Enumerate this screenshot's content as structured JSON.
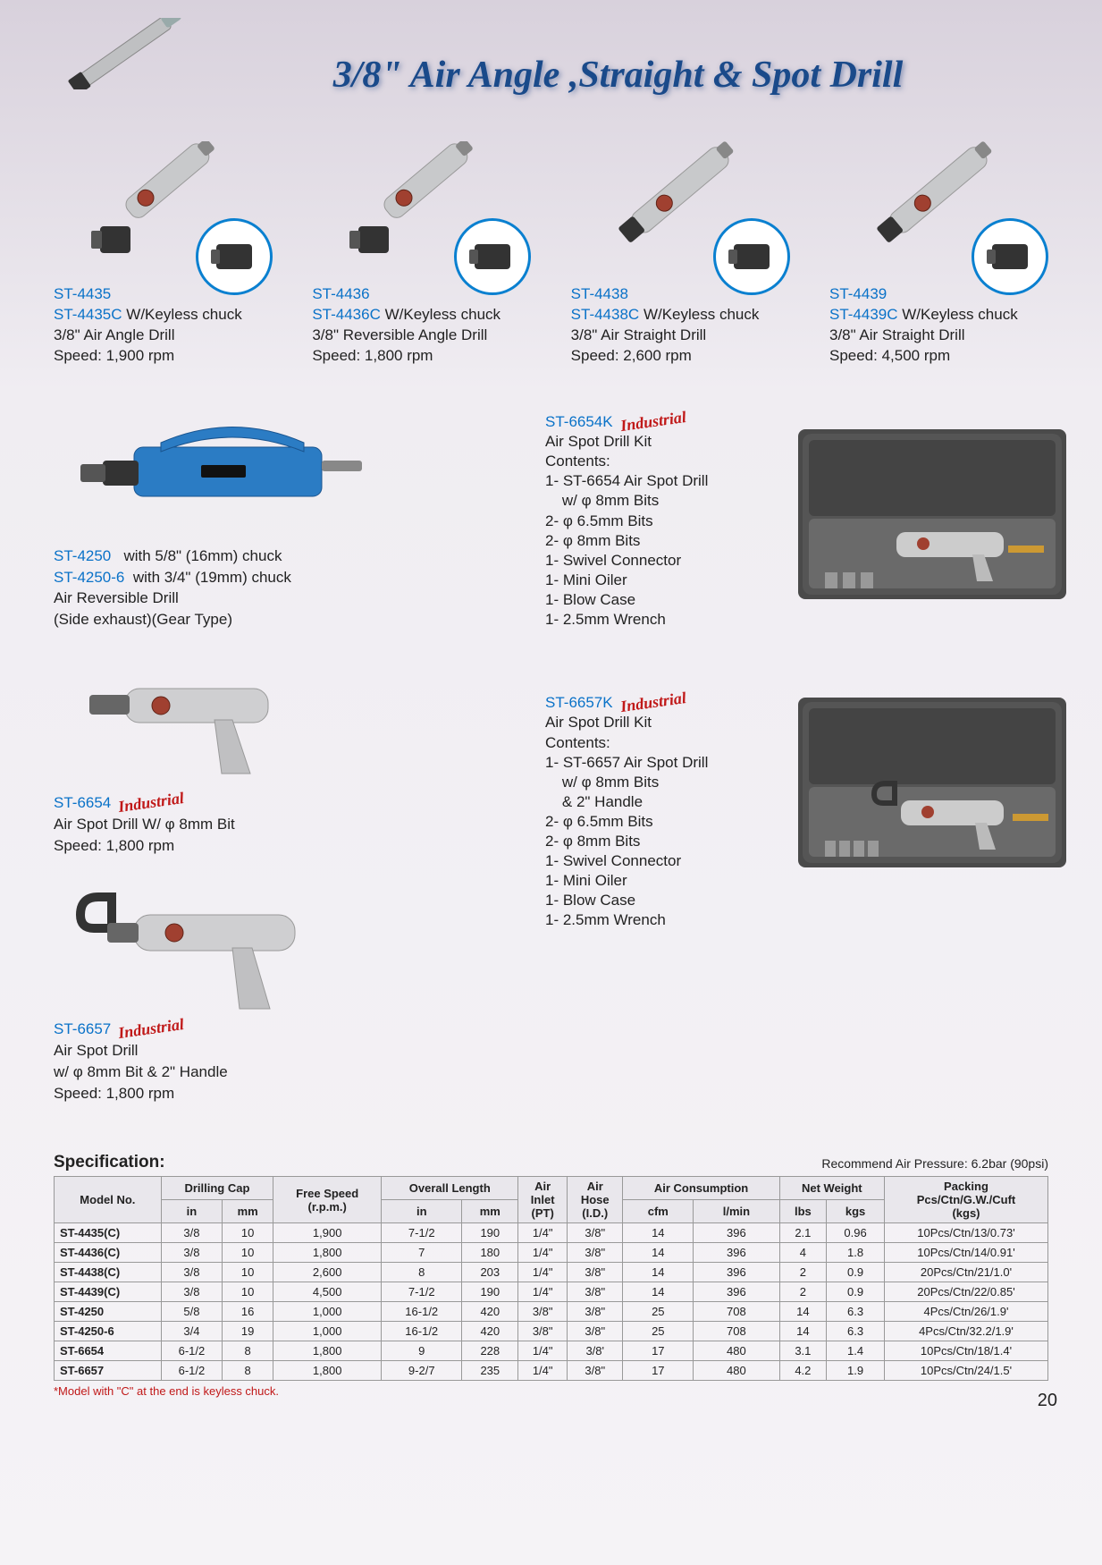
{
  "title": "3/8\" Air Angle ,Straight & Spot Drill",
  "top_products": [
    {
      "model_a": "ST-4435",
      "model_b": "ST-4435C",
      "chuck_note": "W/Keyless chuck",
      "desc": "3/8\" Air Angle Drill",
      "speed": "Speed: 1,900 rpm"
    },
    {
      "model_a": "ST-4436",
      "model_b": "ST-4436C",
      "chuck_note": "W/Keyless chuck",
      "desc": "3/8\" Reversible Angle Drill",
      "speed": "Speed: 1,800 rpm"
    },
    {
      "model_a": "ST-4438",
      "model_b": "ST-4438C",
      "chuck_note": "W/Keyless chuck",
      "desc": "3/8\" Air Straight Drill",
      "speed": "Speed: 2,600 rpm"
    },
    {
      "model_a": "ST-4439",
      "model_b": "ST-4439C",
      "chuck_note": "W/Keyless chuck",
      "desc": "3/8\" Air Straight Drill",
      "speed": "Speed: 4,500 rpm"
    }
  ],
  "st4250": {
    "model_a": "ST-4250",
    "note_a": "with 5/8\" (16mm) chuck",
    "model_b": "ST-4250-6",
    "note_b": "with 3/4\" (19mm) chuck",
    "desc1": "Air Reversible Drill",
    "desc2": "(Side exhaust)(Gear Type)"
  },
  "st6654": {
    "model": "ST-6654",
    "badge": "Industrial",
    "desc": "Air Spot Drill W/ φ 8mm Bit",
    "speed": "Speed: 1,800 rpm"
  },
  "st6657": {
    "model": "ST-6657",
    "badge": "Industrial",
    "desc1": "Air Spot Drill",
    "desc2": "w/ φ 8mm Bit & 2\" Handle",
    "speed": "Speed: 1,800 rpm"
  },
  "kit1": {
    "model": "ST-6654K",
    "badge": "Industrial",
    "heading": "Air Spot Drill Kit",
    "contents_label": "Contents:",
    "lines": [
      "1- ST-6654 Air Spot Drill",
      "    w/ φ 8mm Bits",
      "2- φ 6.5mm Bits",
      "2- φ 8mm Bits",
      "1- Swivel Connector",
      "1- Mini Oiler",
      "1- Blow Case",
      "1- 2.5mm Wrench"
    ]
  },
  "kit2": {
    "model": "ST-6657K",
    "badge": "Industrial",
    "heading": "Air Spot Drill Kit",
    "contents_label": "Contents:",
    "lines": [
      "1- ST-6657 Air Spot Drill",
      "    w/ φ 8mm Bits",
      "    & 2\" Handle",
      "2- φ 6.5mm Bits",
      "2- φ 8mm Bits",
      "1- Swivel Connector",
      "1- Mini Oiler",
      "1- Blow Case",
      "1- 2.5mm Wrench"
    ]
  },
  "spec": {
    "title": "Specification:",
    "note": "Recommend Air Pressure: 6.2bar (90psi)",
    "head_row1": [
      "Model No.",
      "Drilling Cap",
      "Free Speed\n(r.p.m.)",
      "Overall Length",
      "Air\nInlet\n(PT)",
      "Air\nHose\n(I.D.)",
      "Air Consumption",
      "Net Weight",
      "Packing\nPcs/Ctn/G.W./Cuft\n(kgs)"
    ],
    "sub_cols": {
      "drill": [
        "in",
        "mm"
      ],
      "len": [
        "in",
        "mm"
      ],
      "air": [
        "cfm",
        "l/min"
      ],
      "wt": [
        "lbs",
        "kgs"
      ]
    },
    "rows": [
      [
        "ST-4435(C)",
        "3/8",
        "10",
        "1,900",
        "7-1/2",
        "190",
        "1/4\"",
        "3/8\"",
        "14",
        "396",
        "2.1",
        "0.96",
        "10Pcs/Ctn/13/0.73'"
      ],
      [
        "ST-4436(C)",
        "3/8",
        "10",
        "1,800",
        "7",
        "180",
        "1/4\"",
        "3/8\"",
        "14",
        "396",
        "4",
        "1.8",
        "10Pcs/Ctn/14/0.91'"
      ],
      [
        "ST-4438(C)",
        "3/8",
        "10",
        "2,600",
        "8",
        "203",
        "1/4\"",
        "3/8\"",
        "14",
        "396",
        "2",
        "0.9",
        "20Pcs/Ctn/21/1.0'"
      ],
      [
        "ST-4439(C)",
        "3/8",
        "10",
        "4,500",
        "7-1/2",
        "190",
        "1/4\"",
        "3/8\"",
        "14",
        "396",
        "2",
        "0.9",
        "20Pcs/Ctn/22/0.85'"
      ],
      [
        "ST-4250",
        "5/8",
        "16",
        "1,000",
        "16-1/2",
        "420",
        "3/8\"",
        "3/8\"",
        "25",
        "708",
        "14",
        "6.3",
        "4Pcs/Ctn/26/1.9'"
      ],
      [
        "ST-4250-6",
        "3/4",
        "19",
        "1,000",
        "16-1/2",
        "420",
        "3/8\"",
        "3/8\"",
        "25",
        "708",
        "14",
        "6.3",
        "4Pcs/Ctn/32.2/1.9'"
      ],
      [
        "ST-6654",
        "6-1/2",
        "8",
        "1,800",
        "9",
        "228",
        "1/4\"",
        "3/8'",
        "17",
        "480",
        "3.1",
        "1.4",
        "10Pcs/Ctn/18/1.4'"
      ],
      [
        "ST-6657",
        "6-1/2",
        "8",
        "1,800",
        "9-2/7",
        "235",
        "1/4\"",
        "3/8\"",
        "17",
        "480",
        "4.2",
        "1.9",
        "10Pcs/Ctn/24/1.5'"
      ]
    ],
    "footnote": "*Model with \"C\" at the end is keyless chuck."
  },
  "page_number": "20",
  "colors": {
    "title_color": "#1a4a8a",
    "link_blue": "#0a72c8",
    "circle_blue": "#0a80d0",
    "industrial_red": "#c01818",
    "th_bg": "#e9e7ec",
    "border": "#999"
  }
}
